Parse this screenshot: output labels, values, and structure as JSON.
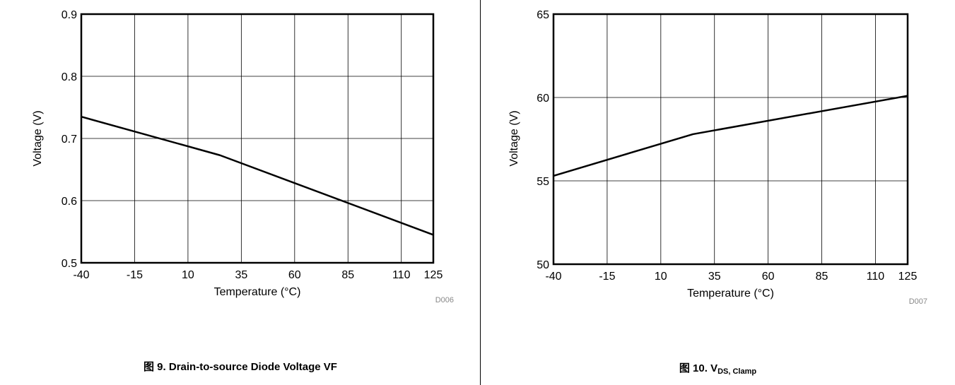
{
  "chart_data": [
    {
      "type": "line",
      "xlabel": "Temperature (°C)",
      "ylabel": "Voltage (V)",
      "xlim": [
        -40,
        125
      ],
      "ylim": [
        0.5,
        0.9
      ],
      "x_ticks": [
        "-40",
        "-15",
        "10",
        "35",
        "60",
        "85",
        "110",
        "125"
      ],
      "y_ticks": [
        "0.5",
        "0.6",
        "0.7",
        "0.8",
        "0.9"
      ],
      "grid": true,
      "code": "D006",
      "caption_prefix": "图 9. ",
      "caption_main": "Drain-to-source Diode Voltage VF",
      "series": [
        {
          "x": [
            -40,
            25,
            125
          ],
          "y": [
            0.735,
            0.673,
            0.545
          ]
        }
      ]
    },
    {
      "type": "line",
      "xlabel": "Temperature (°C)",
      "ylabel": "Voltage (V)",
      "xlim": [
        -40,
        125
      ],
      "ylim": [
        50,
        65
      ],
      "x_ticks": [
        "-40",
        "-15",
        "10",
        "35",
        "60",
        "85",
        "110",
        "125"
      ],
      "y_ticks": [
        "50",
        "55",
        "60",
        "65"
      ],
      "grid": true,
      "code": "D007",
      "caption_prefix": "图 10. V",
      "caption_sub": "DS, Clamp",
      "series": [
        {
          "x": [
            -40,
            25,
            125
          ],
          "y": [
            55.3,
            57.8,
            60.1
          ]
        }
      ]
    }
  ]
}
